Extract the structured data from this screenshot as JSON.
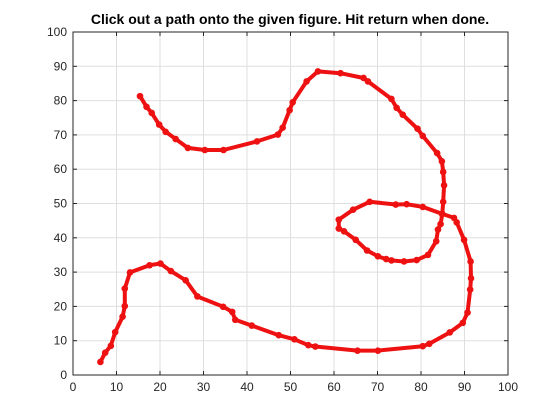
{
  "chart_data": {
    "type": "line",
    "title": "Click out a path onto the given figure. Hit return when done.",
    "xlabel": "",
    "ylabel": "",
    "xlim": [
      0,
      100
    ],
    "ylim": [
      0,
      100
    ],
    "xticks": [
      0,
      10,
      20,
      30,
      40,
      50,
      60,
      70,
      80,
      90,
      100
    ],
    "yticks": [
      0,
      10,
      20,
      30,
      40,
      50,
      60,
      70,
      80,
      90,
      100
    ],
    "grid": true,
    "legend": "none",
    "color": "#ee1111",
    "series": [
      {
        "x": [
          15.4,
          16.9,
          18.1,
          19.8,
          21.3,
          23.6,
          26.4,
          30.3,
          34.6,
          42.3,
          47.1,
          48.2,
          49.8,
          50.5,
          53.7,
          56.3,
          61.5,
          66.8,
          67.8,
          73.2,
          74.4,
          75.8,
          79.2,
          80.4,
          83.7,
          84.8,
          85.1,
          85.3,
          85.1,
          84.9,
          84.5,
          83.9,
          83.5,
          81.6,
          79.0,
          76.1,
          73.2,
          72.0,
          70.1,
          67.6,
          65.0,
          62.3,
          61.1,
          61.1,
          64.4,
          68.2,
          74.2,
          76.7,
          80.4,
          84.8,
          87.6,
          88.2,
          89.9,
          91.4,
          91.5,
          91.3,
          90.7,
          89.6,
          86.6,
          81.9,
          80.4,
          70.1,
          65.4,
          55.7,
          54.1,
          50.9,
          47.3,
          41.1,
          37.3,
          36.6,
          34.5,
          28.6,
          25.9,
          22.5,
          20.1,
          17.6,
          13.1,
          11.9,
          11.9,
          11.4,
          9.7,
          8.7,
          7.4,
          6.3
        ],
        "y": [
          81.3,
          78.2,
          76.4,
          73.0,
          70.9,
          68.8,
          66.2,
          65.6,
          65.6,
          68.1,
          70.1,
          72.1,
          77.2,
          79.5,
          85.6,
          88.5,
          88.0,
          86.6,
          85.6,
          80.5,
          77.9,
          75.9,
          71.8,
          69.7,
          64.7,
          62.3,
          59.2,
          55.3,
          50.5,
          47.0,
          44.0,
          42.4,
          39.0,
          35.0,
          33.5,
          33.1,
          33.4,
          33.8,
          34.6,
          36.3,
          39.4,
          41.9,
          42.7,
          45.3,
          48.2,
          50.5,
          49.7,
          49.8,
          49.0,
          47.0,
          45.8,
          44.5,
          39.4,
          33.1,
          28.2,
          24.9,
          18.2,
          15.2,
          12.4,
          9.1,
          8.4,
          7.1,
          7.1,
          8.3,
          8.7,
          10.4,
          11.6,
          14.4,
          16.1,
          18.4,
          19.9,
          22.9,
          27.6,
          30.3,
          32.5,
          32.0,
          29.9,
          25.2,
          20.1,
          17.0,
          12.5,
          8.5,
          6.5,
          3.8
        ]
      }
    ]
  }
}
